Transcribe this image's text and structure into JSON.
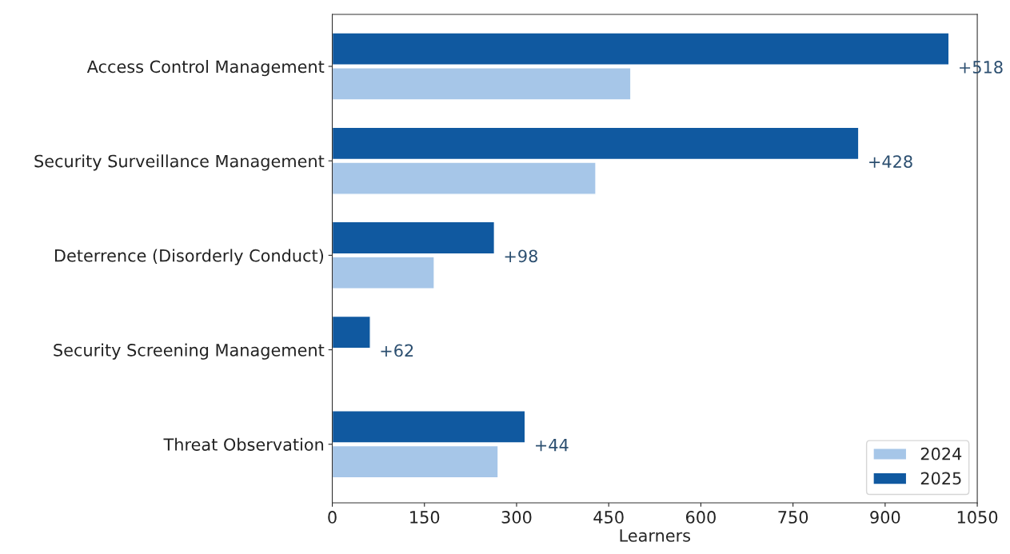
{
  "chart_data": {
    "type": "bar",
    "orientation": "horizontal",
    "xlabel": "Learners",
    "categories": [
      "Access Control Management",
      "Security Surveillance Management",
      "Deterrence (Disorderly Conduct)",
      "Security Screening Management",
      "Threat Observation"
    ],
    "series": [
      {
        "name": "2024",
        "color": "#a6c6e8",
        "values": [
          486,
          429,
          166,
          null,
          270
        ]
      },
      {
        "name": "2025",
        "color": "#1059a0",
        "values": [
          1004,
          857,
          264,
          62,
          314
        ]
      }
    ],
    "annotations": [
      {
        "text": "+518",
        "x": 1004,
        "y": "Access Control Management"
      },
      {
        "text": "+428",
        "x": 857,
        "y": "Security Surveillance Management"
      },
      {
        "text": "+98",
        "x": 264,
        "y": "Deterrence (Disorderly Conduct)"
      },
      {
        "text": "+62",
        "x": 62,
        "y": "Security Screening Management"
      },
      {
        "text": "+44",
        "x": 314,
        "y": "Threat Observation"
      }
    ],
    "xlim": [
      0,
      1050
    ],
    "xticks": [
      0,
      150,
      300,
      450,
      600,
      750,
      900,
      1050
    ],
    "grid": false,
    "legend": "bottom right"
  }
}
